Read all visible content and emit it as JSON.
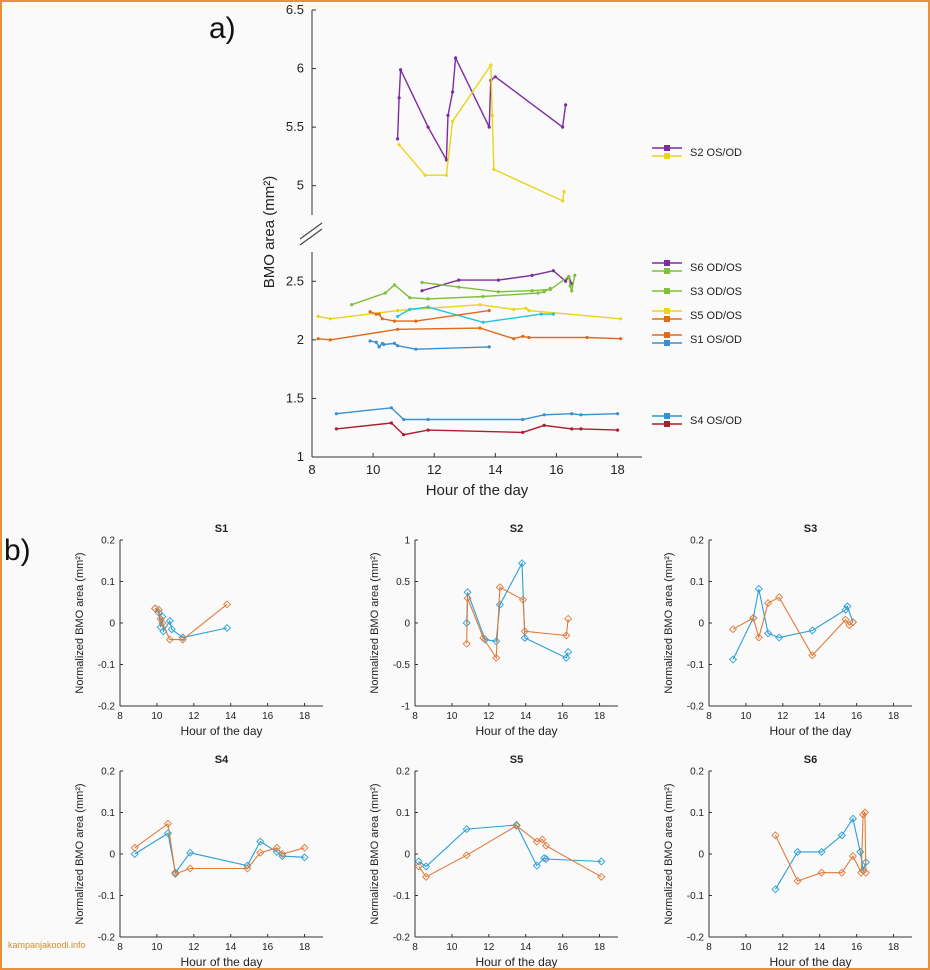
{
  "panel_labels": {
    "a": "a)",
    "b": "b)"
  },
  "watermark": "kampanjakoodi.info",
  "chart_data": [
    {
      "id": "a",
      "type": "line",
      "xlabel": "Hour of the day",
      "ylabel": "BMO area (mm²)",
      "xlim": [
        8,
        18.8
      ],
      "xticks": [
        8,
        10,
        12,
        14,
        16,
        18
      ],
      "upper": {
        "ylim": [
          4.75,
          6.5
        ],
        "yticks": [
          5,
          5.5,
          6,
          6.5
        ]
      },
      "lower": {
        "ylim": [
          1,
          2.75
        ],
        "yticks": [
          1,
          1.5,
          2,
          2.5
        ]
      },
      "legend_groups": [
        {
          "label": "S2 OS/OD",
          "colors": [
            "#7d2ca0",
            "#ebd41a"
          ]
        },
        {
          "label": "S6 OD/OS",
          "colors": [
            "#7d2ca0",
            "#7fbf3a"
          ]
        },
        {
          "label": "S3 OD/OS",
          "colors": [
            "#7fbf3a"
          ]
        },
        {
          "label": "S5 OD/OS",
          "colors": [
            "#ebd41a",
            "#e06a1a"
          ]
        },
        {
          "label": "S1 OS/OD",
          "colors": [
            "#e06a1a",
            "#3a8fd0"
          ]
        },
        {
          "label": "S4 OS/OD",
          "colors": [
            "#3a8fd0",
            "#b01c2e"
          ]
        }
      ],
      "series": [
        {
          "name": "S2 OS",
          "color": "#7d2ca0",
          "panel": "upper",
          "x": [
            10.8,
            10.85,
            10.9,
            11.8,
            12.4,
            12.45,
            12.6,
            12.7,
            13.8,
            13.85,
            14.0,
            16.2,
            16.3
          ],
          "y": [
            5.4,
            5.75,
            5.99,
            5.5,
            5.22,
            5.6,
            5.8,
            6.09,
            5.5,
            5.9,
            5.93,
            5.5,
            5.69
          ]
        },
        {
          "name": "S2 OD",
          "color": "#ebd41a",
          "panel": "upper",
          "x": [
            10.85,
            11.7,
            12.4,
            12.6,
            13.85,
            13.9,
            13.95,
            16.2,
            16.25
          ],
          "y": [
            5.35,
            5.09,
            5.09,
            5.55,
            6.03,
            5.6,
            5.14,
            4.87,
            4.95
          ]
        },
        {
          "name": "S6 OD",
          "color": "#7d2ca0",
          "panel": "lower",
          "x": [
            11.6,
            12.8,
            14.1,
            15.2,
            15.9,
            16.3,
            16.4,
            16.5
          ],
          "y": [
            2.42,
            2.51,
            2.51,
            2.55,
            2.59,
            2.5,
            2.54,
            2.48
          ]
        },
        {
          "name": "S6 OS",
          "color": "#7fbf3a",
          "panel": "lower",
          "x": [
            11.6,
            12.8,
            14.1,
            15.2,
            15.8,
            16.4,
            16.45,
            16.5,
            16.6
          ],
          "y": [
            2.49,
            2.45,
            2.41,
            2.42,
            2.43,
            2.54,
            2.46,
            2.42,
            2.55
          ]
        },
        {
          "name": "S3 OD",
          "color": "#7fbf3a",
          "panel": "lower",
          "x": [
            9.3,
            10.4,
            10.7,
            11.2,
            11.8,
            13.6,
            15.4,
            15.6,
            15.8
          ],
          "y": [
            2.3,
            2.4,
            2.47,
            2.36,
            2.35,
            2.37,
            2.4,
            2.41,
            2.44
          ]
        },
        {
          "name": "S5 OD",
          "color": "#ebd41a",
          "panel": "lower",
          "x": [
            8.2,
            8.6,
            10.8,
            13.5,
            14.6,
            15.0,
            15.1,
            18.1
          ],
          "y": [
            2.2,
            2.18,
            2.25,
            2.3,
            2.26,
            2.27,
            2.25,
            2.18
          ]
        },
        {
          "name": "S5 OS",
          "color": "#e06a1a",
          "panel": "lower",
          "x": [
            8.2,
            8.6,
            10.8,
            13.5,
            14.6,
            14.9,
            15.1,
            17.0,
            18.1
          ],
          "y": [
            2.01,
            2.0,
            2.09,
            2.1,
            2.01,
            2.03,
            2.02,
            2.02,
            2.01
          ]
        },
        {
          "name": "S3 OS",
          "color": "#22c4d8",
          "panel": "lower",
          "x": [
            10.8,
            11.2,
            11.8,
            13.6,
            15.5,
            15.9
          ],
          "y": [
            2.2,
            2.26,
            2.28,
            2.15,
            2.22,
            2.22
          ]
        },
        {
          "name": "S1 OS",
          "color": "#e06a1a",
          "panel": "lower",
          "x": [
            9.9,
            10.1,
            10.2,
            10.3,
            10.7,
            11.4,
            13.8
          ],
          "y": [
            2.24,
            2.22,
            2.22,
            2.18,
            2.16,
            2.16,
            2.25
          ]
        },
        {
          "name": "S1 OD",
          "color": "#3a8fd0",
          "panel": "lower",
          "x": [
            9.9,
            10.1,
            10.2,
            10.3,
            10.35,
            10.7,
            10.8,
            11.4,
            13.8
          ],
          "y": [
            1.99,
            1.98,
            1.94,
            1.97,
            1.96,
            1.97,
            1.95,
            1.92,
            1.94
          ]
        },
        {
          "name": "S4 OS",
          "color": "#3a8fd0",
          "panel": "lower",
          "x": [
            8.8,
            10.6,
            11.0,
            11.8,
            14.9,
            15.6,
            16.5,
            16.8,
            18.0
          ],
          "y": [
            1.37,
            1.42,
            1.32,
            1.32,
            1.32,
            1.36,
            1.37,
            1.36,
            1.37
          ]
        },
        {
          "name": "S4 OD",
          "color": "#b01c2e",
          "panel": "lower",
          "x": [
            8.8,
            10.6,
            11.0,
            11.8,
            14.9,
            15.6,
            16.5,
            16.8,
            18.0
          ],
          "y": [
            1.24,
            1.29,
            1.19,
            1.23,
            1.21,
            1.27,
            1.24,
            1.24,
            1.23
          ]
        }
      ]
    },
    {
      "id": "S1",
      "type": "line",
      "title": "S1",
      "xlabel": "Hour of the day",
      "ylabel": "Normalized BMO area (mm²)",
      "xlim": [
        8,
        19
      ],
      "xticks": [
        8,
        10,
        12,
        14,
        16,
        18
      ],
      "ylim": [
        -0.2,
        0.2
      ],
      "yticks": [
        -0.2,
        -0.1,
        0,
        0.1,
        0.2
      ],
      "series": [
        {
          "name": "OD",
          "color": "#2a9fd6",
          "x": [
            9.9,
            10.1,
            10.2,
            10.3,
            10.35,
            10.7,
            10.8,
            11.4,
            13.8
          ],
          "y": [
            0.035,
            0.025,
            -0.01,
            0.015,
            -0.02,
            0.005,
            -0.015,
            -0.035,
            -0.012
          ]
        },
        {
          "name": "OS",
          "color": "#e07b39",
          "x": [
            9.9,
            10.1,
            10.2,
            10.3,
            10.7,
            11.4,
            13.8
          ],
          "y": [
            0.035,
            0.032,
            0.01,
            0.0,
            -0.04,
            -0.04,
            0.045
          ]
        }
      ]
    },
    {
      "id": "S2",
      "type": "line",
      "title": "S2",
      "xlabel": "Hour of the day",
      "ylabel": "Normalized BMO area (mm²)",
      "xlim": [
        8,
        19
      ],
      "xticks": [
        8,
        10,
        12,
        14,
        16,
        18
      ],
      "ylim": [
        -1,
        1
      ],
      "yticks": [
        -1,
        -0.5,
        0,
        0.5,
        1
      ],
      "series": [
        {
          "name": "OD",
          "color": "#2a9fd6",
          "x": [
            10.8,
            10.85,
            11.8,
            12.4,
            12.6,
            13.8,
            13.95,
            16.2,
            16.3
          ],
          "y": [
            0.0,
            0.37,
            -0.2,
            -0.22,
            0.22,
            0.72,
            -0.18,
            -0.42,
            -0.35
          ]
        },
        {
          "name": "OS",
          "color": "#e07b39",
          "x": [
            10.8,
            10.85,
            11.7,
            12.4,
            12.6,
            13.85,
            13.95,
            16.2,
            16.3
          ],
          "y": [
            -0.25,
            0.3,
            -0.18,
            -0.42,
            0.43,
            0.28,
            -0.1,
            -0.15,
            0.05
          ]
        }
      ]
    },
    {
      "id": "S3",
      "type": "line",
      "title": "S3",
      "xlabel": "Hour of the day",
      "ylabel": "Normalized BMO area (mm²)",
      "xlim": [
        8,
        19
      ],
      "xticks": [
        8,
        10,
        12,
        14,
        16,
        18
      ],
      "ylim": [
        -0.2,
        0.2
      ],
      "yticks": [
        -0.2,
        -0.1,
        0,
        0.1,
        0.2
      ],
      "series": [
        {
          "name": "OD",
          "color": "#2a9fd6",
          "x": [
            9.3,
            10.4,
            10.7,
            11.2,
            11.8,
            13.6,
            15.4,
            15.5,
            15.8
          ],
          "y": [
            -0.088,
            0.012,
            0.082,
            -0.025,
            -0.035,
            -0.018,
            0.032,
            0.04,
            0.002
          ]
        },
        {
          "name": "OS",
          "color": "#e07b39",
          "x": [
            9.3,
            10.4,
            10.7,
            11.2,
            11.8,
            13.6,
            15.4,
            15.6,
            15.8
          ],
          "y": [
            -0.015,
            0.012,
            -0.035,
            0.048,
            0.062,
            -0.078,
            0.008,
            -0.005,
            0.002
          ]
        }
      ]
    },
    {
      "id": "S4",
      "type": "line",
      "title": "S4",
      "xlabel": "Hour of the day",
      "ylabel": "Normalized BMO area (mm²)",
      "xlim": [
        8,
        19
      ],
      "xticks": [
        8,
        10,
        12,
        14,
        16,
        18
      ],
      "ylim": [
        -0.2,
        0.2
      ],
      "yticks": [
        -0.2,
        -0.1,
        0,
        0.1,
        0.2
      ],
      "series": [
        {
          "name": "OD",
          "color": "#2a9fd6",
          "x": [
            8.8,
            10.6,
            11.0,
            11.8,
            14.9,
            15.6,
            16.5,
            16.8,
            18.0
          ],
          "y": [
            0.0,
            0.05,
            -0.045,
            0.003,
            -0.028,
            0.03,
            0.005,
            -0.005,
            -0.008
          ]
        },
        {
          "name": "OS",
          "color": "#e07b39",
          "x": [
            8.8,
            10.6,
            11.0,
            11.8,
            14.9,
            15.6,
            16.5,
            16.8,
            18.0
          ],
          "y": [
            0.015,
            0.073,
            -0.048,
            -0.035,
            -0.035,
            0.003,
            0.015,
            0.0,
            0.015
          ]
        }
      ]
    },
    {
      "id": "S5",
      "type": "line",
      "title": "S5",
      "xlabel": "Hour of the day",
      "ylabel": "Normalized BMO area (mm²)",
      "xlim": [
        8,
        19
      ],
      "xticks": [
        8,
        10,
        12,
        14,
        16,
        18
      ],
      "ylim": [
        -0.2,
        0.2
      ],
      "yticks": [
        -0.2,
        -0.1,
        0,
        0.1,
        0.2
      ],
      "series": [
        {
          "name": "OD",
          "color": "#2a9fd6",
          "x": [
            8.2,
            8.6,
            10.8,
            13.5,
            14.6,
            15.0,
            15.1,
            18.1
          ],
          "y": [
            -0.018,
            -0.03,
            0.06,
            0.07,
            -0.028,
            -0.01,
            -0.012,
            -0.018
          ]
        },
        {
          "name": "OS",
          "color": "#e07b39",
          "x": [
            8.2,
            8.6,
            10.8,
            13.5,
            14.6,
            14.9,
            15.1,
            18.1
          ],
          "y": [
            -0.03,
            -0.055,
            -0.003,
            0.068,
            0.03,
            0.035,
            0.02,
            -0.055
          ]
        }
      ]
    },
    {
      "id": "S6",
      "type": "line",
      "title": "S6",
      "xlabel": "Hour of the day",
      "ylabel": "Normalized BMO area (mm²)",
      "xlim": [
        8,
        19
      ],
      "xticks": [
        8,
        10,
        12,
        14,
        16,
        18
      ],
      "ylim": [
        -0.2,
        0.2
      ],
      "yticks": [
        -0.2,
        -0.1,
        0,
        0.1,
        0.2
      ],
      "series": [
        {
          "name": "OD",
          "color": "#2a9fd6",
          "x": [
            11.6,
            12.8,
            14.1,
            15.2,
            15.8,
            16.2,
            16.35,
            16.5
          ],
          "y": [
            -0.085,
            0.005,
            0.005,
            0.045,
            0.085,
            0.005,
            -0.04,
            -0.02
          ]
        },
        {
          "name": "OS",
          "color": "#e07b39",
          "x": [
            11.6,
            12.8,
            14.1,
            15.2,
            15.8,
            16.25,
            16.35,
            16.45,
            16.5
          ],
          "y": [
            0.045,
            -0.065,
            -0.045,
            -0.045,
            -0.005,
            -0.045,
            0.095,
            0.1,
            -0.045
          ]
        }
      ]
    }
  ]
}
